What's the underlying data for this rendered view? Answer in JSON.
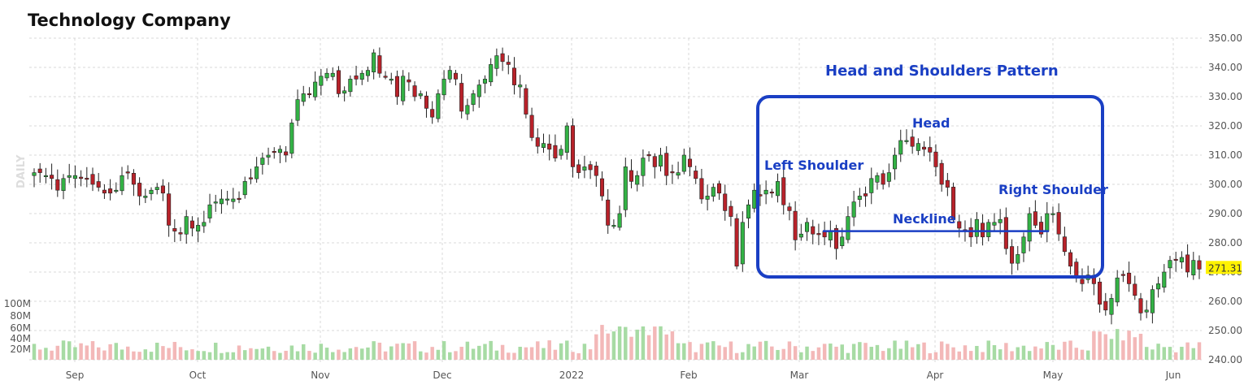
{
  "chart_data": {
    "type": "candlestick",
    "title": "Technology Company",
    "period_label": "DAILY",
    "y_axis": {
      "min": 240,
      "max": 350,
      "ticks": [
        "350.00",
        "340.00",
        "330.00",
        "320.00",
        "310.00",
        "300.00",
        "290.00",
        "280.00",
        "270.00",
        "260.00",
        "250.00",
        "240.00"
      ]
    },
    "volume_axis": {
      "ticks": [
        "100M",
        "80M",
        "60M",
        "40M",
        "20M"
      ]
    },
    "x_ticks": [
      "Sep",
      "Oct",
      "Nov",
      "Dec",
      "2022",
      "Feb",
      "Mar",
      "Apr",
      "May",
      "Jun"
    ],
    "last_price": "271.31",
    "colors": {
      "up": "#33b245",
      "down": "#b8222a",
      "vol_up": "#a7dba4",
      "vol_down": "#f3b8b8",
      "annotation": "#1a3fc4",
      "price_highlight": "#fff200"
    },
    "annotations": {
      "pattern_title": "Head and Shoulders Pattern",
      "left_shoulder": "Left Shoulder",
      "head": "Head",
      "right_shoulder": "Right Shoulder",
      "neckline": "Neckline",
      "neckline_value": 284
    },
    "ohlc_close_series": [
      304,
      304,
      303,
      302,
      298,
      302,
      303,
      303,
      302,
      302,
      300,
      299,
      297,
      297,
      298,
      303,
      304,
      300,
      296,
      296,
      298,
      299,
      297,
      286,
      284,
      283,
      289,
      285,
      286,
      287,
      293,
      294,
      295,
      295,
      295,
      295,
      301,
      302,
      306,
      309,
      310,
      311,
      312,
      310,
      321,
      329,
      331,
      331,
      335,
      337,
      338,
      338,
      331,
      332,
      336,
      336,
      338,
      339,
      345,
      338,
      337,
      336,
      330,
      337,
      335,
      330,
      331,
      326,
      323,
      331,
      336,
      339,
      336,
      325,
      327,
      331,
      334,
      336,
      341,
      344,
      342,
      341,
      334,
      334,
      324,
      316,
      313,
      314,
      312,
      309,
      312,
      320,
      306,
      304,
      306,
      305,
      303,
      296,
      286,
      286,
      290,
      306,
      301,
      303,
      309,
      310,
      306,
      310,
      303,
      304,
      304,
      310,
      306,
      302,
      295,
      296,
      299,
      297,
      291,
      289,
      272,
      287,
      293,
      298,
      296,
      298,
      297,
      301,
      293,
      291,
      281,
      283,
      287,
      283,
      283,
      282,
      284,
      278,
      282,
      289,
      294,
      296,
      296,
      302,
      303,
      300,
      304,
      310,
      315,
      315,
      313,
      314,
      312,
      311,
      306,
      300,
      299,
      288,
      285,
      284,
      282,
      288,
      282,
      287,
      287,
      288,
      278,
      273,
      276,
      282,
      290,
      286,
      283,
      290,
      290,
      283,
      277,
      272,
      268,
      266,
      269,
      266,
      259,
      257,
      261,
      268,
      269,
      266,
      262,
      256,
      257,
      264,
      266,
      270,
      274,
      274,
      275,
      270,
      274,
      271
    ]
  }
}
